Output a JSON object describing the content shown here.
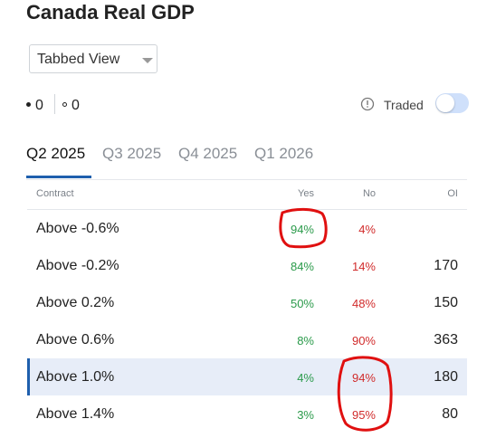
{
  "title": "Canada Real GDP",
  "view_select": {
    "value": "Tabbed View"
  },
  "indicators": {
    "filled_count": "0",
    "hollow_count": "0"
  },
  "traded": {
    "label": "Traded",
    "enabled": false
  },
  "tabs": [
    {
      "label": "Q2 2025",
      "active": true
    },
    {
      "label": "Q3 2025",
      "active": false
    },
    {
      "label": "Q4 2025",
      "active": false
    },
    {
      "label": "Q1 2026",
      "active": false
    }
  ],
  "table": {
    "headers": {
      "contract": "Contract",
      "yes": "Yes",
      "no": "No",
      "oi": "OI"
    },
    "rows": [
      {
        "contract": "Above -0.6%",
        "yes": "94%",
        "no": "4%",
        "oi": ""
      },
      {
        "contract": "Above -0.2%",
        "yes": "84%",
        "no": "14%",
        "oi": "170"
      },
      {
        "contract": "Above 0.2%",
        "yes": "50%",
        "no": "48%",
        "oi": "150"
      },
      {
        "contract": "Above 0.6%",
        "yes": "8%",
        "no": "90%",
        "oi": "363"
      },
      {
        "contract": "Above 1.0%",
        "yes": "4%",
        "no": "94%",
        "oi": "180",
        "selected": true
      },
      {
        "contract": "Above 1.4%",
        "yes": "3%",
        "no": "95%",
        "oi": "80"
      }
    ]
  },
  "colors": {
    "accent": "#1f5fad",
    "yes": "#2a9a4a",
    "no": "#d12b2b",
    "annotation": "#e01010"
  }
}
